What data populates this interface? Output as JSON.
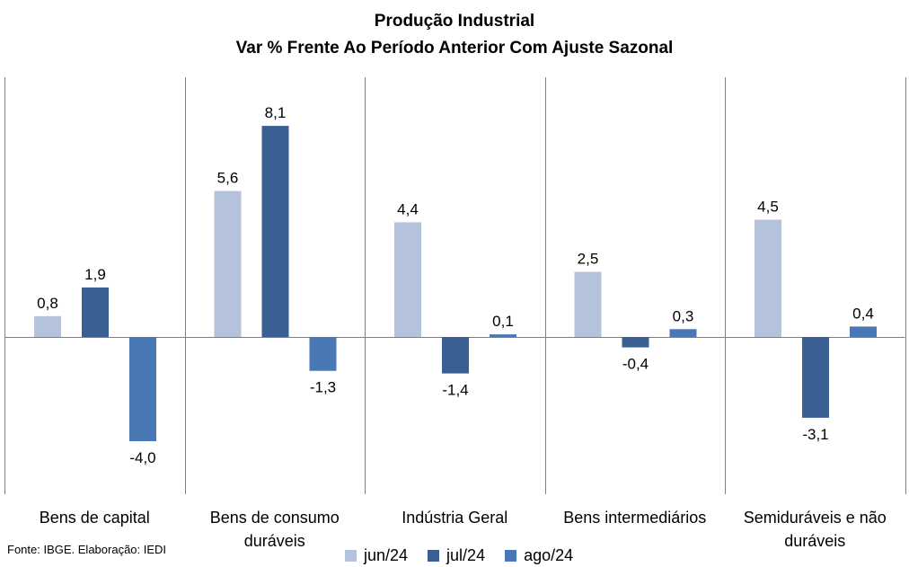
{
  "chart_data": {
    "type": "bar",
    "title_line1": "Produção Industrial",
    "title_line2": "Var % Frente Ao Período Anterior Com Ajuste Sazonal",
    "categories": [
      [
        "Bens de capital"
      ],
      [
        "Bens de consumo",
        "duráveis"
      ],
      [
        "Indústria Geral"
      ],
      [
        "Bens intermediários"
      ],
      [
        "Semiduráveis e não",
        "duráveis"
      ]
    ],
    "series": [
      {
        "name": "jun/24",
        "color": "#b4c2dc",
        "values": [
          0.8,
          5.6,
          4.4,
          2.5,
          4.5
        ],
        "labels": [
          "0,8",
          "5,6",
          "4,4",
          "2,5",
          "4,5"
        ]
      },
      {
        "name": "jul/24",
        "color": "#3a5f92",
        "values": [
          1.9,
          8.1,
          -1.4,
          -0.4,
          -3.1
        ],
        "labels": [
          "1,9",
          "8,1",
          "-1,4",
          "-0,4",
          "-3,1"
        ]
      },
      {
        "name": "ago/24",
        "color": "#4a78b4",
        "values": [
          -4.0,
          -1.3,
          0.1,
          0.3,
          0.4
        ],
        "labels": [
          "-4,0",
          "-1,3",
          "0,1",
          "0,3",
          "0,4"
        ]
      }
    ],
    "ylim": [
      -6.0,
      10.0
    ],
    "grid": false,
    "legend_position": "bottom"
  },
  "source": "Fonte: IBGE. Elaboração: IEDI"
}
